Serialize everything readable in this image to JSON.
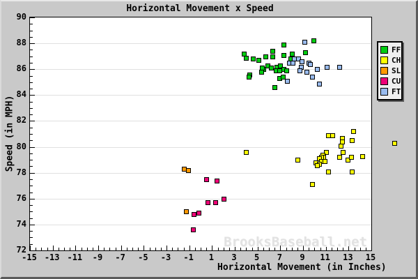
{
  "window": {
    "title": "Horizontal Movement x Speed"
  },
  "watermark": "BrooksBaseball.net",
  "colors": {
    "background": "#c9c9c9",
    "plot_background": "#ffffff",
    "gridline": "#e0e0e0",
    "axis": "#000000",
    "watermark": "#e2e2e2",
    "legend_background": "#efefef",
    "FF": "#00cc11",
    "CH": "#ffff00",
    "SL": "#ff9900",
    "CU": "#ee0077",
    "FT": "#99bbee"
  },
  "legend": {
    "entries": [
      "FF",
      "CH",
      "SL",
      "CU",
      "FT"
    ]
  },
  "chart_data": {
    "type": "scatter",
    "title": "Horizontal Movement x Speed",
    "xlabel": "Horizontal Movement (in Inches)",
    "ylabel": "Speed (in MPH)",
    "xlim": [
      -15,
      15
    ],
    "ylim": [
      72,
      90
    ],
    "x_ticks": [
      -15,
      -13,
      -11,
      -9,
      -7,
      -5,
      -3,
      -1,
      1,
      3,
      5,
      7,
      9,
      11,
      13,
      15
    ],
    "y_ticks": [
      72,
      74,
      76,
      78,
      80,
      82,
      84,
      86,
      88,
      90
    ],
    "minor_tick_step": 0.5,
    "grid": "horizontal-majors-only",
    "legend_position": "right-outside",
    "marker": "square",
    "series": [
      {
        "name": "FF",
        "color": "#00cc11",
        "points": [
          [
            3.8,
            87.2
          ],
          [
            4.0,
            86.9
          ],
          [
            4.6,
            86.8
          ],
          [
            5.1,
            86.7
          ],
          [
            5.7,
            87.0
          ],
          [
            6.3,
            87.4
          ],
          [
            6.3,
            87.0
          ],
          [
            7.3,
            87.9
          ],
          [
            7.3,
            87.1
          ],
          [
            7.9,
            86.8
          ],
          [
            8.0,
            87.2
          ],
          [
            9.2,
            87.3
          ],
          [
            9.9,
            88.2
          ],
          [
            5.9,
            86.3
          ],
          [
            5.5,
            86.0
          ],
          [
            5.4,
            86.1
          ],
          [
            6.7,
            86.2
          ],
          [
            7.0,
            86.3
          ],
          [
            6.6,
            85.9
          ],
          [
            6.9,
            85.9
          ],
          [
            7.3,
            86.0
          ],
          [
            6.9,
            85.3
          ],
          [
            7.2,
            85.4
          ],
          [
            6.5,
            84.6
          ],
          [
            4.3,
            85.6
          ],
          [
            4.2,
            85.4
          ],
          [
            5.3,
            85.8
          ],
          [
            6.2,
            86.1
          ],
          [
            7.5,
            85.9
          ]
        ]
      },
      {
        "name": "CH",
        "color": "#ffff00",
        "points": [
          [
            13.4,
            81.2
          ],
          [
            11.2,
            80.9
          ],
          [
            11.6,
            80.9
          ],
          [
            12.4,
            80.7
          ],
          [
            13.3,
            80.5
          ],
          [
            12.4,
            80.4
          ],
          [
            12.3,
            80.1
          ],
          [
            8.5,
            79.0
          ],
          [
            11.0,
            79.6
          ],
          [
            10.7,
            79.4
          ],
          [
            10.8,
            79.2
          ],
          [
            10.6,
            79.2
          ],
          [
            10.4,
            79.1
          ],
          [
            10.6,
            78.9
          ],
          [
            10.9,
            78.9
          ],
          [
            10.1,
            78.8
          ],
          [
            10.4,
            78.7
          ],
          [
            10.2,
            78.6
          ],
          [
            12.5,
            79.6
          ],
          [
            12.2,
            79.2
          ],
          [
            12.9,
            79.0
          ],
          [
            13.2,
            79.2
          ],
          [
            14.2,
            79.3
          ],
          [
            11.2,
            78.1
          ],
          [
            13.3,
            78.1
          ],
          [
            9.8,
            77.1
          ],
          [
            4.0,
            79.6
          ],
          [
            17.0,
            80.3
          ]
        ]
      },
      {
        "name": "SL",
        "color": "#ff9900",
        "points": [
          [
            -1.5,
            78.3
          ],
          [
            -1.1,
            78.2
          ],
          [
            -1.3,
            75.0
          ]
        ]
      },
      {
        "name": "CU",
        "color": "#ee0077",
        "points": [
          [
            0.5,
            77.5
          ],
          [
            1.4,
            77.4
          ],
          [
            2.0,
            76.0
          ],
          [
            0.6,
            75.7
          ],
          [
            1.3,
            75.7
          ],
          [
            -0.6,
            74.8
          ],
          [
            -0.2,
            74.9
          ],
          [
            -0.7,
            73.6
          ]
        ]
      },
      {
        "name": "FT",
        "color": "#99bbee",
        "points": [
          [
            9.1,
            88.1
          ],
          [
            7.8,
            86.5
          ],
          [
            8.1,
            86.5
          ],
          [
            8.2,
            86.8
          ],
          [
            8.6,
            86.8
          ],
          [
            8.9,
            86.6
          ],
          [
            9.5,
            86.5
          ],
          [
            9.6,
            86.4
          ],
          [
            8.8,
            86.2
          ],
          [
            8.7,
            85.9
          ],
          [
            9.3,
            85.8
          ],
          [
            10.2,
            86.0
          ],
          [
            9.8,
            85.4
          ],
          [
            7.6,
            85.1
          ],
          [
            10.4,
            84.9
          ],
          [
            11.1,
            86.2
          ],
          [
            12.2,
            86.2
          ]
        ]
      }
    ]
  }
}
